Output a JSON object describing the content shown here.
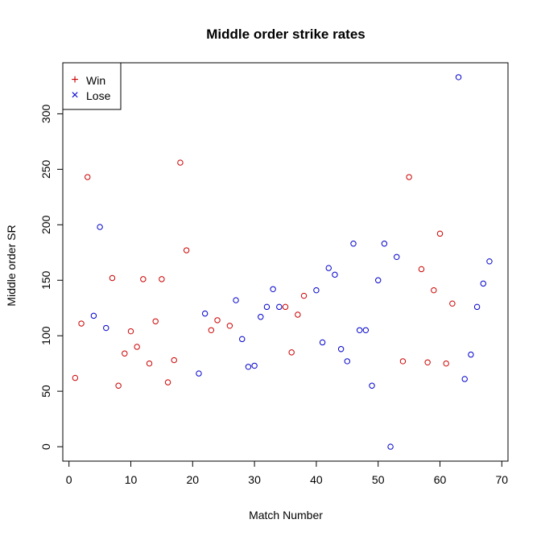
{
  "chart_data": {
    "type": "scatter",
    "title": "Middle order strike rates",
    "xlabel": "Match Number",
    "ylabel": "Middle order SR",
    "xlim": [
      -1,
      71
    ],
    "ylim": [
      -13,
      346
    ],
    "x_ticks": [
      0,
      10,
      20,
      30,
      40,
      50,
      60,
      70
    ],
    "y_ticks": [
      0,
      50,
      100,
      150,
      200,
      250,
      300
    ],
    "grid": false,
    "legend_position": "top-left",
    "legend": [
      {
        "label": "Win",
        "symbol": "+",
        "color": "#cc0000"
      },
      {
        "label": "Lose",
        "symbol": "×",
        "color": "#0000cc"
      }
    ],
    "series": [
      {
        "name": "Win",
        "color": "#cc0000",
        "points": [
          [
            1,
            62
          ],
          [
            2,
            111
          ],
          [
            3,
            243
          ],
          [
            7,
            152
          ],
          [
            8,
            55
          ],
          [
            9,
            84
          ],
          [
            10,
            104
          ],
          [
            11,
            90
          ],
          [
            12,
            151
          ],
          [
            13,
            75
          ],
          [
            14,
            113
          ],
          [
            15,
            151
          ],
          [
            16,
            58
          ],
          [
            17,
            78
          ],
          [
            18,
            256
          ],
          [
            19,
            177
          ],
          [
            23,
            105
          ],
          [
            24,
            114
          ],
          [
            26,
            109
          ],
          [
            35,
            126
          ],
          [
            36,
            85
          ],
          [
            37,
            119
          ],
          [
            38,
            136
          ],
          [
            54,
            77
          ],
          [
            55,
            243
          ],
          [
            57,
            160
          ],
          [
            58,
            76
          ],
          [
            59,
            141
          ],
          [
            60,
            192
          ],
          [
            61,
            75
          ],
          [
            62,
            129
          ]
        ]
      },
      {
        "name": "Lose",
        "color": "#0000cc",
        "points": [
          [
            4,
            118
          ],
          [
            5,
            198
          ],
          [
            6,
            107
          ],
          [
            21,
            66
          ],
          [
            22,
            120
          ],
          [
            27,
            132
          ],
          [
            28,
            97
          ],
          [
            29,
            72
          ],
          [
            30,
            73
          ],
          [
            31,
            117
          ],
          [
            32,
            126
          ],
          [
            33,
            142
          ],
          [
            34,
            126
          ],
          [
            40,
            141
          ],
          [
            41,
            94
          ],
          [
            42,
            161
          ],
          [
            43,
            155
          ],
          [
            44,
            88
          ],
          [
            45,
            77
          ],
          [
            46,
            183
          ],
          [
            47,
            105
          ],
          [
            48,
            105
          ],
          [
            49,
            55
          ],
          [
            50,
            150
          ],
          [
            51,
            183
          ],
          [
            52,
            0
          ],
          [
            53,
            171
          ],
          [
            63,
            333
          ],
          [
            64,
            61
          ],
          [
            65,
            83
          ],
          [
            66,
            126
          ],
          [
            67,
            147
          ],
          [
            68,
            167
          ]
        ]
      }
    ]
  }
}
